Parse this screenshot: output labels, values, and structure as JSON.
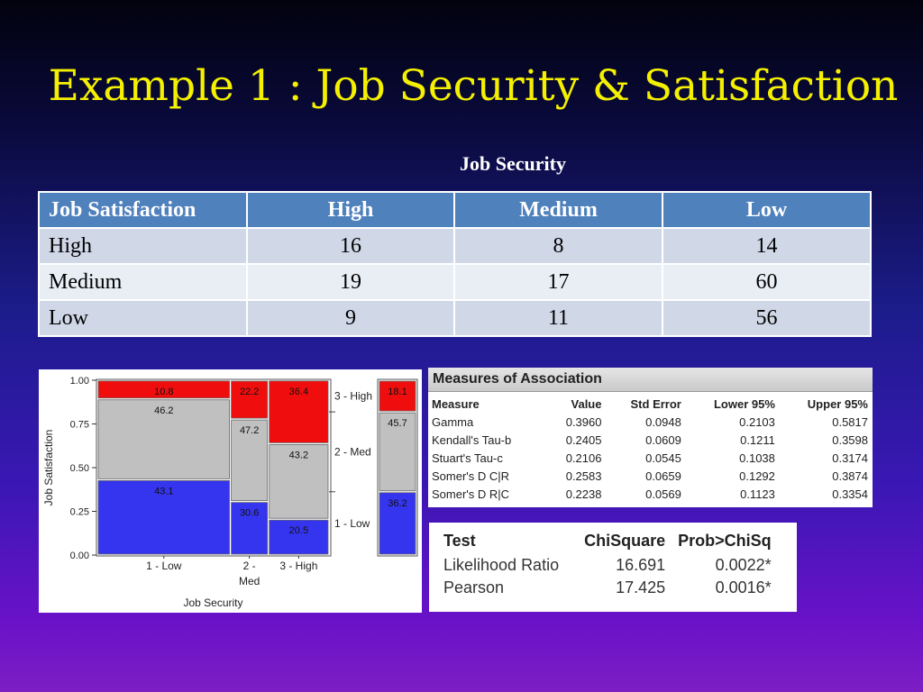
{
  "slide": {
    "title": "Example 1 : Job Security & Satisfaction"
  },
  "contingency_table": {
    "column_group_label": "Job Security",
    "headers": [
      "Job Satisfaction",
      "High",
      "Medium",
      "Low"
    ],
    "rows": [
      [
        "High",
        "16",
        "8",
        "14"
      ],
      [
        "Medium",
        "19",
        "17",
        "60"
      ],
      [
        "Low",
        "9",
        "11",
        "56"
      ]
    ]
  },
  "chart_data": {
    "type": "mosaic",
    "xlabel": "Job Security",
    "ylabel": "Job Satisfaction",
    "ylim": [
      0,
      1
    ],
    "y_ticks": [
      "0.00",
      "0.25",
      "0.50",
      "0.75",
      "1.00"
    ],
    "categories": [
      "1 - Low",
      "2 - Med",
      "3 - High"
    ],
    "column_widths": [
      0.58,
      0.16,
      0.26
    ],
    "series": [
      {
        "name": "1 - Low",
        "color": "#3535f0",
        "values": [
          43.1,
          30.6,
          20.5
        ]
      },
      {
        "name": "2 - Med",
        "color": "#c0c0c0",
        "values": [
          46.2,
          47.2,
          43.2
        ]
      },
      {
        "name": "3 - High",
        "color": "#f00d0d",
        "values": [
          10.8,
          22.2,
          36.4
        ]
      }
    ],
    "margin_bar": {
      "values": [
        36.2,
        45.7,
        18.1
      ],
      "labels": [
        "1 - Low",
        "2 - Med",
        "3 - High"
      ]
    },
    "legend_position": "right"
  },
  "measures_of_association": {
    "title": "Measures of Association",
    "headers": [
      "Measure",
      "Value",
      "Std Error",
      "Lower 95%",
      "Upper 95%"
    ],
    "rows": [
      [
        "Gamma",
        "0.3960",
        "0.0948",
        "0.2103",
        "0.5817"
      ],
      [
        "Kendall's Tau-b",
        "0.2405",
        "0.0609",
        "0.1211",
        "0.3598"
      ],
      [
        "Stuart's Tau-c",
        "0.2106",
        "0.0545",
        "0.1038",
        "0.3174"
      ],
      [
        "Somer's D C|R",
        "0.2583",
        "0.0659",
        "0.1292",
        "0.3874"
      ],
      [
        "Somer's D R|C",
        "0.2238",
        "0.0569",
        "0.1123",
        "0.3354"
      ]
    ]
  },
  "tests": {
    "headers": [
      "Test",
      "ChiSquare",
      "Prob>ChiSq"
    ],
    "rows": [
      [
        "Likelihood Ratio",
        "16.691",
        "0.0022*"
      ],
      [
        "Pearson",
        "17.425",
        "0.0016*"
      ]
    ]
  }
}
